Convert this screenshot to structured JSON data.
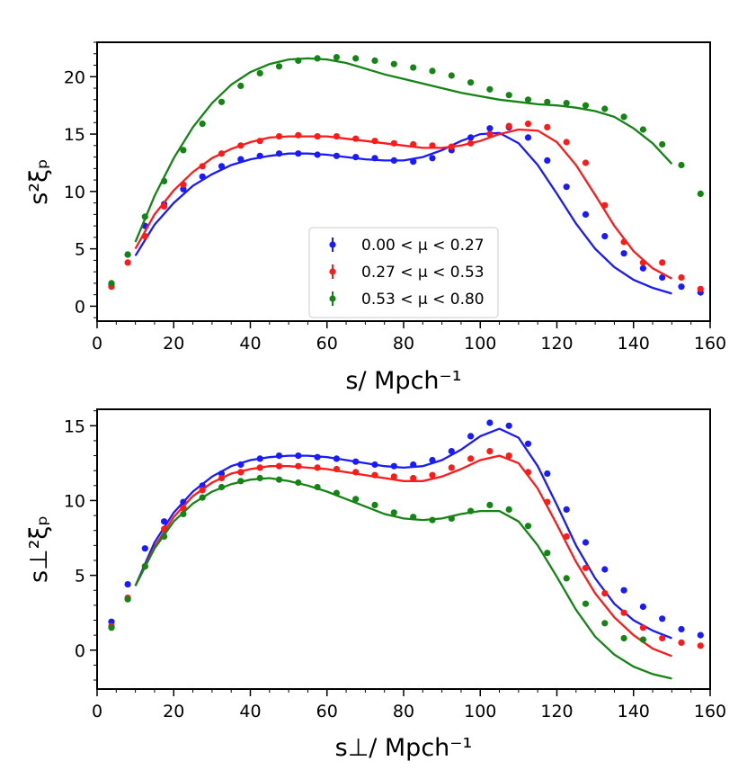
{
  "chart_data": [
    {
      "type": "scatter",
      "panel": "top",
      "xlabel": "s/   Mpch⁻¹",
      "ylabel": "s²ξₚ",
      "xlim": [
        0,
        160
      ],
      "ylim": [
        -1.3,
        23
      ],
      "xticks": [
        0,
        20,
        40,
        60,
        80,
        100,
        120,
        140,
        160
      ],
      "yticks": [
        0,
        5,
        10,
        15,
        20
      ],
      "legend": {
        "position": "lower-center",
        "entries": [
          "0.00 < μ < 0.27",
          "0.27 < μ < 0.53",
          "0.53 < μ < 0.80"
        ]
      },
      "x": [
        3.75,
        8.0,
        12.5,
        17.5,
        22.5,
        27.5,
        32.5,
        37.5,
        42.5,
        47.5,
        52.5,
        57.5,
        62.5,
        67.5,
        72.5,
        77.5,
        82.5,
        87.5,
        92.5,
        97.5,
        102.5,
        107.5,
        112.5,
        117.5,
        122.5,
        127.5,
        132.5,
        137.5,
        142.5,
        147.5,
        152.5,
        157.5
      ],
      "series": [
        {
          "name": "0.00 < μ < 0.27",
          "color": "#1a1aff",
          "points": [
            1.9,
            4.5,
            7.0,
            8.9,
            10.2,
            11.3,
            12.2,
            12.8,
            13.1,
            13.3,
            13.3,
            13.2,
            13.1,
            13.0,
            12.9,
            12.7,
            12.6,
            12.9,
            13.6,
            14.7,
            15.5,
            15.6,
            14.7,
            12.7,
            10.4,
            8.0,
            6.1,
            4.6,
            3.3,
            2.5,
            1.7,
            1.2
          ],
          "model_x": [
            10,
            15,
            20,
            25,
            30,
            35,
            40,
            45,
            50,
            55,
            60,
            65,
            70,
            75,
            80,
            85,
            90,
            95,
            100,
            105,
            110,
            115,
            120,
            125,
            130,
            135,
            140,
            145,
            150
          ],
          "model": [
            4.4,
            7.1,
            9.0,
            10.5,
            11.5,
            12.3,
            12.8,
            13.1,
            13.3,
            13.3,
            13.2,
            13.0,
            12.8,
            12.7,
            12.7,
            13.0,
            13.6,
            14.4,
            15.0,
            15.1,
            14.2,
            12.3,
            9.8,
            7.2,
            5.0,
            3.4,
            2.3,
            1.6,
            1.1
          ]
        },
        {
          "name": "0.27 < μ < 0.53",
          "color": "#ff1a1a",
          "points": [
            1.7,
            3.8,
            6.1,
            8.7,
            10.6,
            12.2,
            13.3,
            14.0,
            14.4,
            14.8,
            14.9,
            14.8,
            14.8,
            14.6,
            14.4,
            14.2,
            14.1,
            14.0,
            13.9,
            14.2,
            15.0,
            15.7,
            15.9,
            15.6,
            14.3,
            12.5,
            8.8,
            5.6,
            3.8,
            3.8,
            2.5,
            1.5
          ],
          "model_x": [
            10,
            15,
            20,
            25,
            30,
            35,
            40,
            45,
            50,
            55,
            60,
            65,
            70,
            75,
            80,
            85,
            90,
            95,
            100,
            105,
            110,
            115,
            120,
            125,
            130,
            135,
            140,
            145,
            150
          ],
          "model": [
            5.0,
            8.0,
            10.1,
            11.7,
            12.9,
            13.7,
            14.3,
            14.7,
            14.8,
            14.8,
            14.8,
            14.6,
            14.4,
            14.2,
            14.0,
            13.8,
            13.8,
            14.0,
            14.4,
            15.0,
            15.4,
            15.3,
            14.3,
            12.3,
            9.7,
            7.0,
            4.8,
            3.3,
            2.4
          ]
        },
        {
          "name": "0.53 < μ < 0.80",
          "color": "#148414",
          "points": [
            2.0,
            4.5,
            7.8,
            10.9,
            13.6,
            15.9,
            17.8,
            19.2,
            20.3,
            20.9,
            21.4,
            21.6,
            21.7,
            21.6,
            21.4,
            21.1,
            20.8,
            20.5,
            20.1,
            19.5,
            18.9,
            18.4,
            18.0,
            17.8,
            17.7,
            17.5,
            17.2,
            16.5,
            15.4,
            14.1,
            12.3,
            9.8
          ],
          "model_x": [
            10,
            15,
            20,
            25,
            30,
            35,
            40,
            45,
            50,
            55,
            60,
            65,
            70,
            75,
            80,
            85,
            90,
            95,
            100,
            105,
            110,
            115,
            120,
            125,
            130,
            135,
            140,
            145,
            150
          ],
          "model": [
            5.6,
            9.6,
            12.9,
            15.6,
            17.7,
            19.3,
            20.4,
            21.1,
            21.5,
            21.6,
            21.5,
            21.2,
            20.7,
            20.2,
            19.8,
            19.4,
            19.0,
            18.6,
            18.3,
            18.0,
            17.8,
            17.6,
            17.5,
            17.3,
            17.0,
            16.5,
            15.5,
            14.2,
            12.4
          ]
        }
      ]
    },
    {
      "type": "scatter",
      "panel": "bottom",
      "xlabel": "s⊥/   Mpch⁻¹",
      "ylabel": "s⊥²ξₚ",
      "xlim": [
        0,
        160
      ],
      "ylim": [
        -2.6,
        16.1
      ],
      "xticks": [
        0,
        20,
        40,
        60,
        80,
        100,
        120,
        140,
        160
      ],
      "yticks": [
        0,
        5,
        10,
        15
      ],
      "x": [
        3.75,
        8.0,
        12.5,
        17.5,
        22.5,
        27.5,
        32.5,
        37.5,
        42.5,
        47.5,
        52.5,
        57.5,
        62.5,
        67.5,
        72.5,
        77.5,
        82.5,
        87.5,
        92.5,
        97.5,
        102.5,
        107.5,
        112.5,
        117.5,
        122.5,
        127.5,
        132.5,
        137.5,
        142.5,
        147.5,
        152.5,
        157.5
      ],
      "series": [
        {
          "name": "0.00 < μ < 0.27",
          "color": "#1a1aff",
          "points": [
            1.9,
            4.4,
            6.8,
            8.6,
            9.9,
            11.0,
            11.8,
            12.4,
            12.8,
            13.0,
            13.0,
            12.9,
            12.8,
            12.6,
            12.4,
            12.3,
            12.4,
            12.7,
            13.3,
            14.3,
            15.2,
            15.0,
            13.8,
            11.8,
            9.4,
            7.2,
            5.4,
            4.0,
            2.9,
            2.1,
            1.4,
            1.0
          ],
          "model_x": [
            10,
            15,
            20,
            25,
            30,
            35,
            40,
            45,
            50,
            55,
            60,
            65,
            70,
            75,
            80,
            85,
            90,
            95,
            100,
            105,
            110,
            115,
            120,
            125,
            130,
            135,
            140,
            145,
            150
          ],
          "model": [
            4.3,
            7.2,
            9.2,
            10.6,
            11.6,
            12.3,
            12.7,
            12.9,
            13.0,
            13.0,
            12.9,
            12.7,
            12.5,
            12.3,
            12.2,
            12.3,
            12.7,
            13.4,
            14.3,
            14.8,
            14.2,
            12.3,
            9.7,
            7.0,
            4.8,
            3.1,
            2.0,
            1.3,
            0.8
          ]
        },
        {
          "name": "0.27 < μ < 0.53",
          "color": "#ff1a1a",
          "points": [
            1.6,
            3.5,
            5.6,
            8.1,
            9.5,
            10.7,
            11.5,
            11.9,
            12.2,
            12.3,
            12.3,
            12.2,
            12.1,
            11.9,
            11.7,
            11.6,
            11.5,
            11.7,
            12.2,
            12.8,
            13.3,
            13.0,
            11.9,
            9.9,
            7.6,
            5.5,
            3.8,
            2.5,
            1.5,
            0.8,
            0.5,
            0.3
          ],
          "model_x": [
            10,
            15,
            20,
            25,
            30,
            35,
            40,
            45,
            50,
            55,
            60,
            65,
            70,
            75,
            80,
            85,
            90,
            95,
            100,
            105,
            110,
            115,
            120,
            125,
            130,
            135,
            140,
            145,
            150
          ],
          "model": [
            4.3,
            6.9,
            8.9,
            10.3,
            11.2,
            11.8,
            12.1,
            12.3,
            12.3,
            12.2,
            12.1,
            11.9,
            11.7,
            11.5,
            11.3,
            11.3,
            11.6,
            12.1,
            12.7,
            13.0,
            12.5,
            10.8,
            8.4,
            5.9,
            3.8,
            2.2,
            1.0,
            0.1,
            -0.4
          ]
        },
        {
          "name": "0.53 < μ < 0.80",
          "color": "#148414",
          "points": [
            1.5,
            3.4,
            5.6,
            7.6,
            9.1,
            10.2,
            10.9,
            11.3,
            11.5,
            11.4,
            11.2,
            10.9,
            10.5,
            10.1,
            9.7,
            9.2,
            8.9,
            8.7,
            8.8,
            9.3,
            9.7,
            9.4,
            8.3,
            6.5,
            4.8,
            3.1,
            1.8,
            0.8,
            0.7,
            null,
            null,
            null
          ],
          "model_x": [
            10,
            15,
            20,
            25,
            30,
            35,
            40,
            45,
            50,
            55,
            60,
            65,
            70,
            75,
            80,
            85,
            90,
            95,
            100,
            105,
            110,
            115,
            120,
            125,
            130,
            135,
            140,
            145,
            150
          ],
          "model": [
            4.3,
            6.8,
            8.6,
            9.8,
            10.6,
            11.1,
            11.4,
            11.5,
            11.3,
            11.0,
            10.6,
            10.1,
            9.6,
            9.1,
            8.8,
            8.7,
            8.8,
            9.1,
            9.3,
            9.3,
            8.6,
            7.0,
            4.9,
            2.7,
            0.9,
            -0.3,
            -1.1,
            -1.6,
            -1.9
          ]
        }
      ]
    }
  ]
}
